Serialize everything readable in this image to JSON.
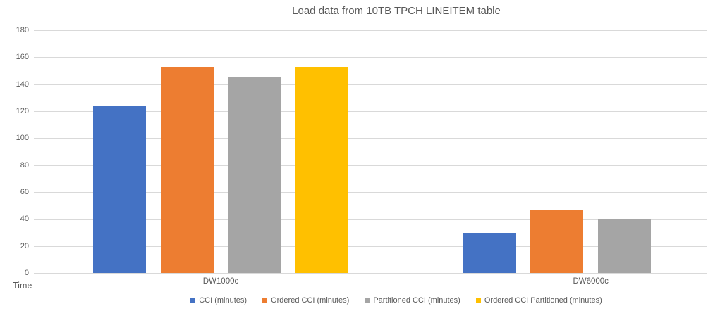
{
  "chart_data": {
    "type": "bar",
    "title": "Load data from 10TB TPCH LINEITEM table",
    "ylabel": "Time",
    "categories": [
      "DW1000c",
      "DW6000c"
    ],
    "series": [
      {
        "name": "CCI (minutes)",
        "color": "#4472C4",
        "values": [
          124,
          30
        ]
      },
      {
        "name": "Ordered CCI (minutes)",
        "color": "#ED7D31",
        "values": [
          153,
          47
        ]
      },
      {
        "name": "Partitioned CCI (minutes)",
        "color": "#A5A5A5",
        "values": [
          145,
          40
        ]
      },
      {
        "name": "Ordered CCI Partitioned (minutes)",
        "color": "#FFC000",
        "values": [
          153,
          null
        ]
      }
    ],
    "ylim": [
      0,
      180
    ],
    "yticks": [
      0,
      20,
      40,
      60,
      80,
      100,
      120,
      140,
      160,
      180
    ],
    "grid": true,
    "legend_position": "bottom",
    "colors": {
      "gridline": "#D9D9D9",
      "axis_line": "#D9D9D9",
      "text": "#595959",
      "background": "#FFFFFF"
    }
  }
}
